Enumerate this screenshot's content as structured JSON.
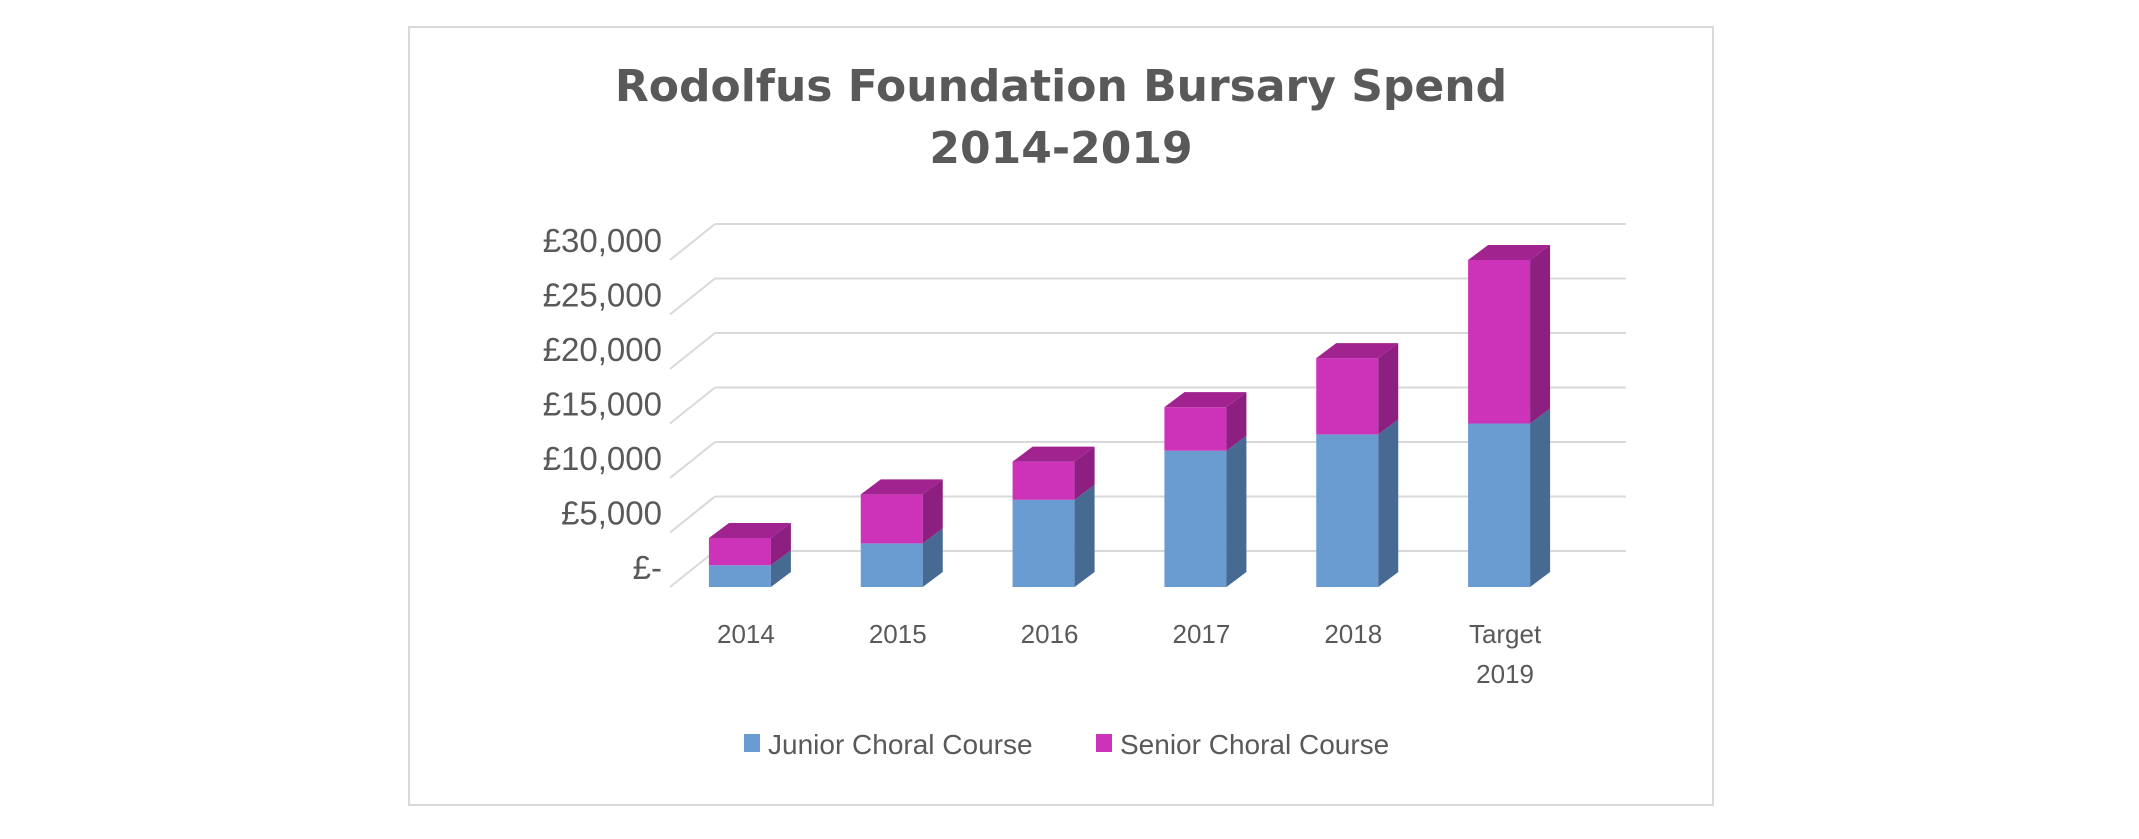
{
  "chart_data": {
    "type": "bar",
    "stacked": true,
    "style": "3d-column",
    "title_lines": [
      "Rodolfus Foundation Bursary Spend",
      "2014-2019"
    ],
    "categories": [
      [
        "2014"
      ],
      [
        "2015"
      ],
      [
        "2016"
      ],
      [
        "2017"
      ],
      [
        "2018"
      ],
      [
        "Target",
        "2019"
      ]
    ],
    "series": [
      {
        "name": "Junior Choral Course",
        "values": [
          2000,
          4000,
          8000,
          12500,
          14000,
          15000
        ],
        "color": "#6a9bd1",
        "side_color": "#466a91",
        "top_color": "#4f78a8"
      },
      {
        "name": "Senior Choral Course",
        "values": [
          2500,
          4500,
          3500,
          4000,
          7000,
          15000
        ],
        "color": "#cc33b8",
        "side_color": "#8c1f80",
        "top_color": "#a0238f"
      }
    ],
    "ylim": [
      0,
      30000
    ],
    "yticks": [
      0,
      5000,
      10000,
      15000,
      20000,
      25000,
      30000
    ],
    "ytick_labels": [
      "£-",
      "£5,000",
      "£10,000",
      "£15,000",
      "£20,000",
      "£25,000",
      "£30,000"
    ],
    "grid": true,
    "grid_color": "#d9d9d9",
    "legend_position": "bottom"
  }
}
